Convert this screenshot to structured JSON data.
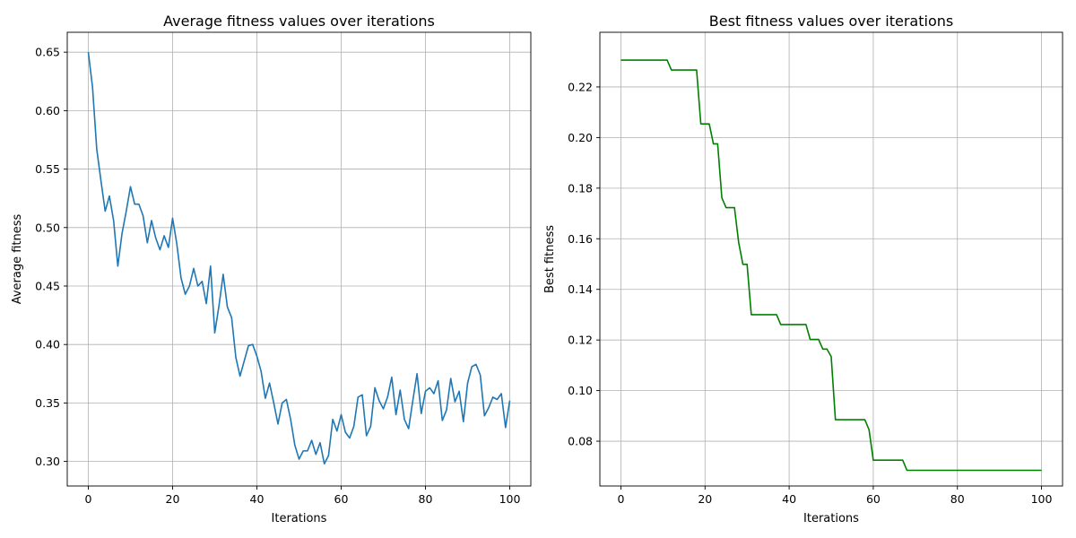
{
  "chart_data": [
    {
      "type": "line",
      "title": "Average fitness values over iterations",
      "xlabel": "Iterations",
      "ylabel": "Average fitness",
      "xlim": [
        -5,
        105
      ],
      "ylim": [
        0.279,
        0.667
      ],
      "xticks": [
        0,
        20,
        40,
        60,
        80,
        100
      ],
      "yticks": [
        0.3,
        0.35,
        0.4,
        0.45,
        0.5,
        0.55,
        0.6,
        0.65
      ],
      "ytick_labels": [
        "0.30",
        "0.35",
        "0.40",
        "0.45",
        "0.50",
        "0.55",
        "0.60",
        "0.65"
      ],
      "grid": true,
      "color": "#1f77b4",
      "x": [
        0,
        1,
        2,
        3,
        4,
        5,
        6,
        7,
        8,
        9,
        10,
        11,
        12,
        13,
        14,
        15,
        16,
        17,
        18,
        19,
        20,
        21,
        22,
        23,
        24,
        25,
        26,
        27,
        28,
        29,
        30,
        31,
        32,
        33,
        34,
        35,
        36,
        37,
        38,
        39,
        40,
        41,
        42,
        43,
        44,
        45,
        46,
        47,
        48,
        49,
        50,
        51,
        52,
        53,
        54,
        55,
        56,
        57,
        58,
        59,
        60,
        61,
        62,
        63,
        64,
        65,
        66,
        67,
        68,
        69,
        70,
        71,
        72,
        73,
        74,
        75,
        76,
        77,
        78,
        79,
        80,
        81,
        82,
        83,
        84,
        85,
        86,
        87,
        88,
        89,
        90,
        91,
        92,
        93,
        94,
        95,
        96,
        97,
        98,
        99,
        100
      ],
      "y": [
        0.65,
        0.62,
        0.567,
        0.54,
        0.514,
        0.527,
        0.506,
        0.467,
        0.495,
        0.514,
        0.535,
        0.52,
        0.52,
        0.51,
        0.487,
        0.506,
        0.491,
        0.481,
        0.493,
        0.483,
        0.508,
        0.486,
        0.457,
        0.443,
        0.45,
        0.465,
        0.45,
        0.454,
        0.435,
        0.467,
        0.41,
        0.433,
        0.46,
        0.432,
        0.423,
        0.389,
        0.373,
        0.386,
        0.399,
        0.4,
        0.39,
        0.377,
        0.354,
        0.367,
        0.35,
        0.332,
        0.35,
        0.353,
        0.336,
        0.314,
        0.302,
        0.309,
        0.309,
        0.318,
        0.306,
        0.316,
        0.298,
        0.305,
        0.336,
        0.326,
        0.34,
        0.325,
        0.32,
        0.33,
        0.355,
        0.357,
        0.322,
        0.33,
        0.363,
        0.352,
        0.345,
        0.355,
        0.372,
        0.34,
        0.361,
        0.336,
        0.328,
        0.352,
        0.375,
        0.341,
        0.36,
        0.363,
        0.358,
        0.369,
        0.335,
        0.344,
        0.371,
        0.351,
        0.36,
        0.334,
        0.367,
        0.381,
        0.383,
        0.374,
        0.339,
        0.346,
        0.355,
        0.353,
        0.358,
        0.329,
        0.352
      ]
    },
    {
      "type": "line",
      "title": "Best fitness values over iterations",
      "xlabel": "Iterations",
      "ylabel": "Best fitness",
      "xlim": [
        -5,
        105
      ],
      "ylim": [
        0.0623,
        0.2416
      ],
      "xticks": [
        0,
        20,
        40,
        60,
        80,
        100
      ],
      "yticks": [
        0.08,
        0.1,
        0.12,
        0.14,
        0.16,
        0.18,
        0.2,
        0.22
      ],
      "ytick_labels": [
        "0.08",
        "0.10",
        "0.12",
        "0.14",
        "0.16",
        "0.18",
        "0.20",
        "0.22"
      ],
      "grid": true,
      "color": "#008000",
      "x": [
        0,
        1,
        2,
        3,
        4,
        5,
        6,
        7,
        8,
        9,
        10,
        11,
        12,
        13,
        14,
        15,
        16,
        17,
        18,
        19,
        20,
        21,
        22,
        23,
        24,
        25,
        26,
        27,
        28,
        29,
        30,
        31,
        32,
        33,
        34,
        35,
        36,
        37,
        38,
        39,
        40,
        41,
        42,
        43,
        44,
        45,
        46,
        47,
        48,
        49,
        50,
        51,
        52,
        53,
        54,
        55,
        56,
        57,
        58,
        59,
        60,
        61,
        62,
        63,
        64,
        65,
        66,
        67,
        68,
        69,
        70,
        71,
        72,
        73,
        74,
        75,
        76,
        77,
        78,
        79,
        80,
        81,
        82,
        83,
        84,
        85,
        86,
        87,
        88,
        89,
        90,
        91,
        92,
        93,
        94,
        95,
        96,
        97,
        98,
        99,
        100
      ],
      "y": [
        0.2306,
        0.2306,
        0.2306,
        0.2306,
        0.2306,
        0.2306,
        0.2306,
        0.2306,
        0.2306,
        0.2306,
        0.2306,
        0.2306,
        0.2267,
        0.2267,
        0.2267,
        0.2267,
        0.2267,
        0.2267,
        0.2267,
        0.2054,
        0.2054,
        0.2054,
        0.1975,
        0.1975,
        0.1762,
        0.1723,
        0.1723,
        0.1723,
        0.1585,
        0.1499,
        0.1499,
        0.13,
        0.13,
        0.13,
        0.13,
        0.13,
        0.13,
        0.13,
        0.1261,
        0.1261,
        0.1261,
        0.1261,
        0.1261,
        0.1261,
        0.1261,
        0.1202,
        0.1202,
        0.1202,
        0.1164,
        0.1164,
        0.1134,
        0.0885,
        0.0885,
        0.0885,
        0.0885,
        0.0885,
        0.0885,
        0.0885,
        0.0885,
        0.0845,
        0.0725,
        0.0725,
        0.0725,
        0.0725,
        0.0725,
        0.0725,
        0.0725,
        0.0725,
        0.0685,
        0.0685,
        0.0685,
        0.0685,
        0.0685,
        0.0685,
        0.0685,
        0.0685,
        0.0685,
        0.0685,
        0.0685,
        0.0685,
        0.0685,
        0.0685,
        0.0685,
        0.0685,
        0.0685,
        0.0685,
        0.0685,
        0.0685,
        0.0685,
        0.0685,
        0.0685,
        0.0685,
        0.0685,
        0.0685,
        0.0685,
        0.0685,
        0.0685,
        0.0685,
        0.0685,
        0.0685,
        0.0685
      ]
    }
  ]
}
